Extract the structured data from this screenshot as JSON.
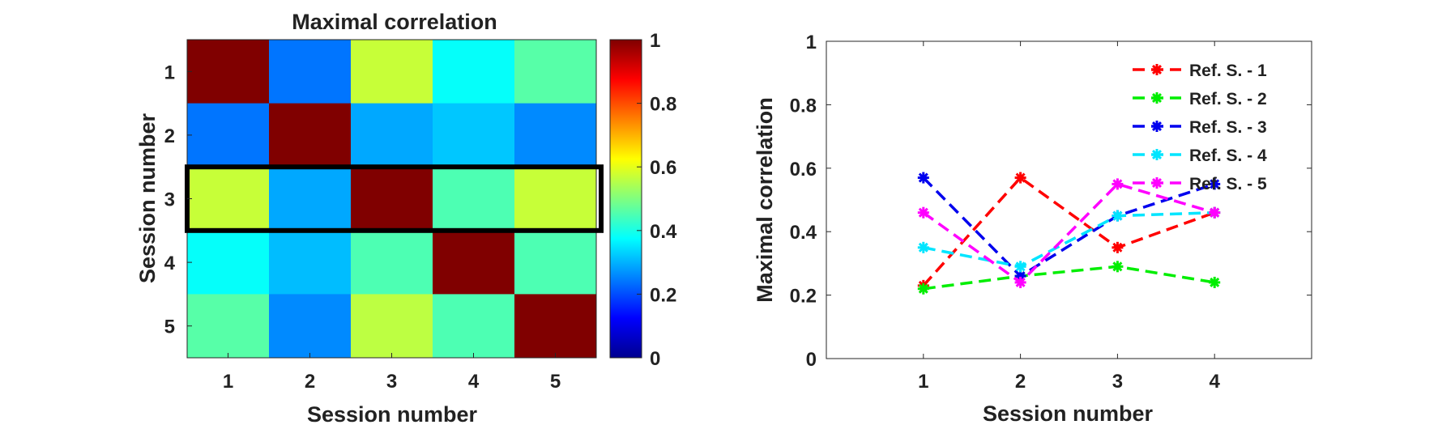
{
  "chart_data": [
    {
      "type": "heatmap",
      "title": "Maximal correlation",
      "xlabel": "Session number",
      "ylabel": "Session number",
      "x_categories": [
        "1",
        "2",
        "3",
        "4",
        "5"
      ],
      "y_categories": [
        "1",
        "2",
        "3",
        "4",
        "5"
      ],
      "values": [
        [
          1.0,
          0.24,
          0.57,
          0.38,
          0.46
        ],
        [
          0.24,
          1.0,
          0.29,
          0.32,
          0.26
        ],
        [
          0.57,
          0.29,
          1.0,
          0.45,
          0.57
        ],
        [
          0.38,
          0.31,
          0.45,
          1.0,
          0.45
        ],
        [
          0.46,
          0.26,
          0.56,
          0.45,
          1.0
        ]
      ],
      "highlighted_row": "3",
      "colorbar": {
        "colormap": "jet",
        "range": [
          0,
          1
        ],
        "ticks": [
          "0",
          "0.2",
          "0.4",
          "0.6",
          "0.8",
          "1"
        ],
        "tick_values": [
          0,
          0.2,
          0.4,
          0.6,
          0.8,
          1
        ]
      }
    },
    {
      "type": "line",
      "title": "",
      "xlabel": "Session number",
      "ylabel": "Maximal correlation",
      "xlim": [
        0,
        5
      ],
      "ylim": [
        0,
        1
      ],
      "x_ticks": [
        1,
        2,
        3,
        4
      ],
      "x_tick_labels": [
        "1",
        "2",
        "3",
        "4"
      ],
      "y_ticks": [
        0,
        0.2,
        0.4,
        0.6,
        0.8,
        1
      ],
      "y_tick_labels": [
        "0",
        "0.2",
        "0.4",
        "0.6",
        "0.8",
        "1"
      ],
      "x": [
        1,
        2,
        3,
        4
      ],
      "legend_position": "top-right",
      "series": [
        {
          "name": "Ref. S. - 1",
          "color": "#ff0000",
          "values": [
            0.23,
            0.57,
            0.35,
            0.46
          ]
        },
        {
          "name": "Ref. S. - 2",
          "color": "#00ee00",
          "values": [
            0.22,
            0.26,
            0.29,
            0.24
          ]
        },
        {
          "name": "Ref. S. - 3",
          "color": "#0000ee",
          "values": [
            0.57,
            0.26,
            0.45,
            0.55
          ]
        },
        {
          "name": "Ref. S. - 4",
          "color": "#00e5ff",
          "values": [
            0.35,
            0.29,
            0.45,
            0.46
          ]
        },
        {
          "name": "Ref. S. - 5",
          "color": "#ff00ff",
          "values": [
            0.46,
            0.24,
            0.55,
            0.46
          ]
        }
      ]
    }
  ]
}
